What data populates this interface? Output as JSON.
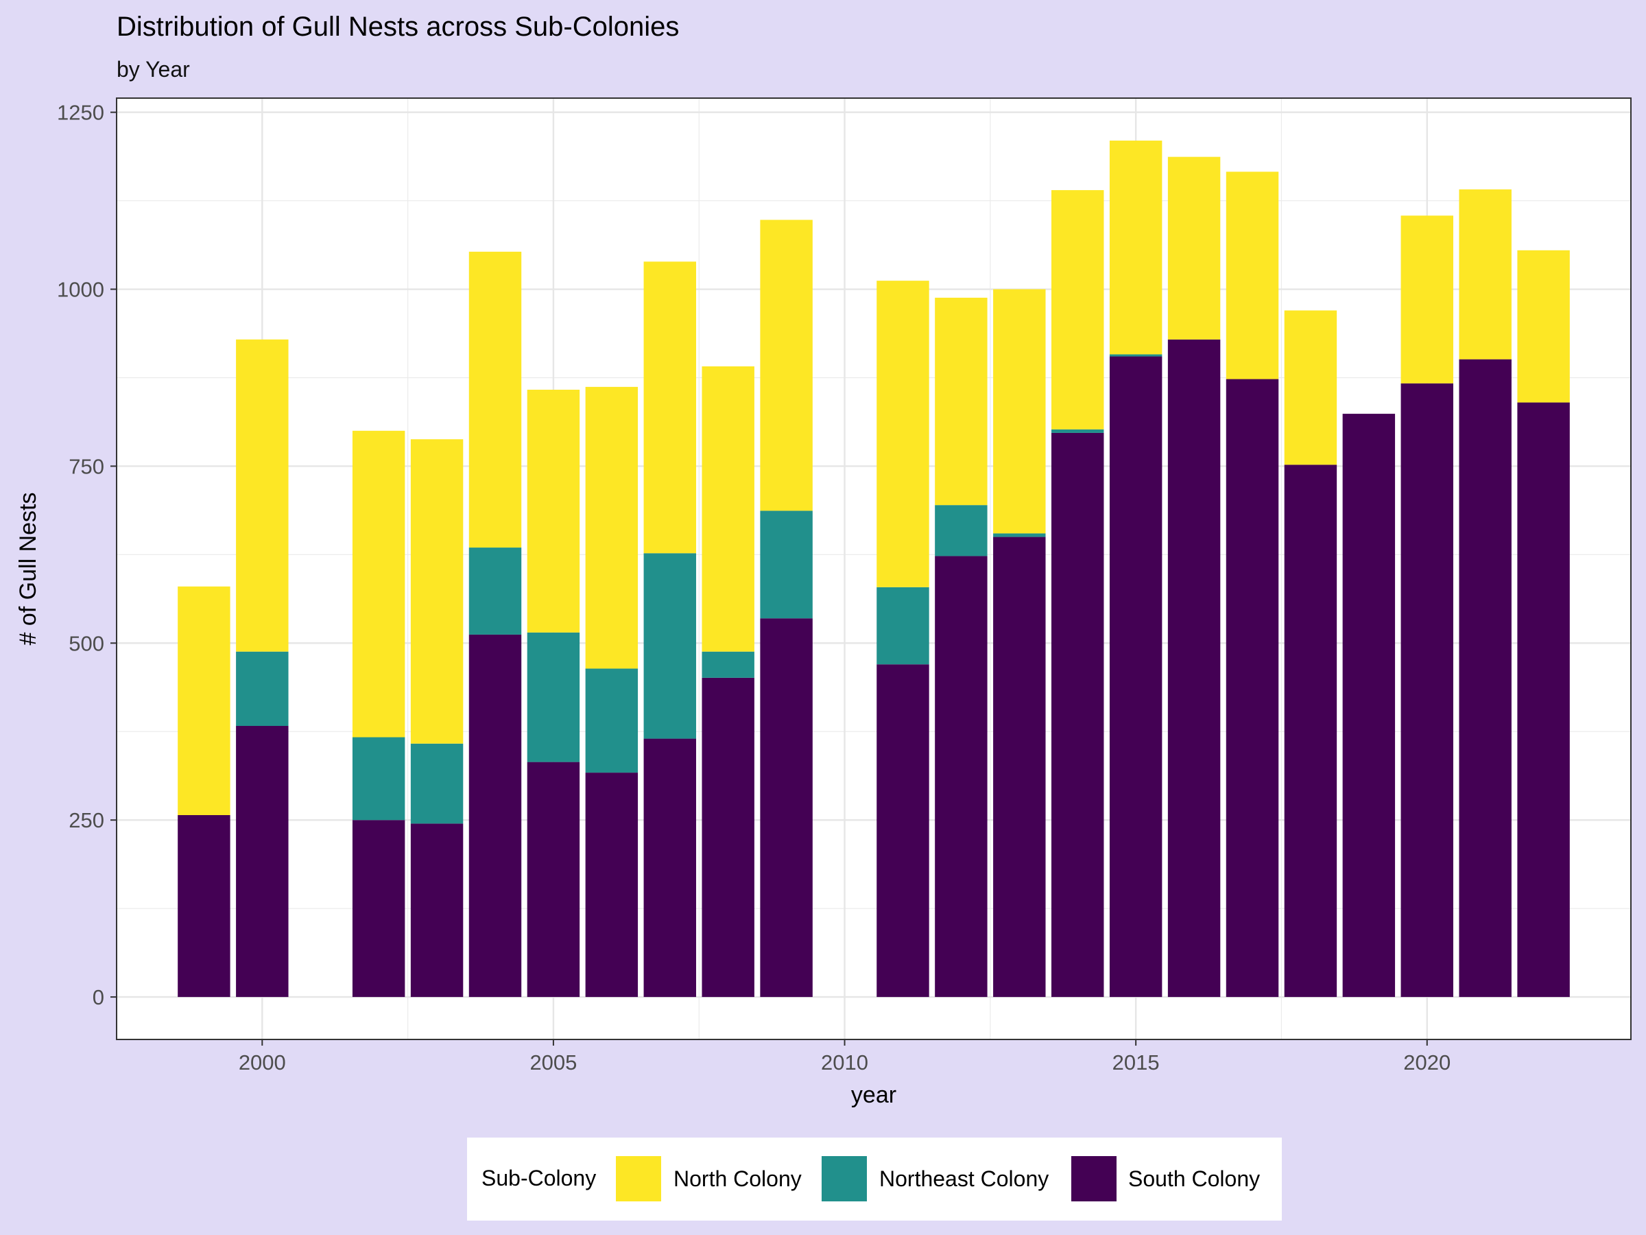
{
  "chart_data": {
    "type": "bar",
    "stacked": true,
    "title": "Distribution of Gull Nests across Sub-Colonies",
    "subtitle": "by Year",
    "xlabel": "year",
    "ylabel": "# of Gull Nests",
    "xlim": [
      1997.5,
      2023.5
    ],
    "ylim": [
      -60,
      1270
    ],
    "x_ticks": [
      2000,
      2005,
      2010,
      2015,
      2020
    ],
    "y_ticks": [
      0,
      250,
      500,
      750,
      1000,
      1250
    ],
    "grid": true,
    "legend": {
      "title": "Sub-Colony",
      "position": "bottom"
    },
    "x": [
      1999,
      2000,
      2002,
      2003,
      2004,
      2005,
      2006,
      2007,
      2008,
      2009,
      2011,
      2012,
      2013,
      2014,
      2015,
      2016,
      2017,
      2018,
      2019,
      2020,
      2021,
      2022
    ],
    "series": [
      {
        "name": "South Colony",
        "color": "#440154",
        "values": [
          257,
          383,
          250,
          245,
          512,
          332,
          317,
          365,
          451,
          535,
          470,
          623,
          650,
          797,
          905,
          929,
          873,
          752,
          824,
          867,
          901,
          840
        ]
      },
      {
        "name": "Northeast Colony",
        "color": "#21908c",
        "values": [
          0,
          105,
          117,
          113,
          123,
          183,
          147,
          262,
          37,
          152,
          109,
          72,
          5,
          5,
          3,
          0,
          0,
          0,
          0,
          0,
          0,
          0
        ]
      },
      {
        "name": "North Colony",
        "color": "#fde725",
        "values": [
          323,
          441,
          433,
          430,
          418,
          343,
          398,
          412,
          403,
          411,
          433,
          293,
          345,
          338,
          302,
          258,
          293,
          218,
          0,
          237,
          240,
          215
        ]
      }
    ],
    "legend_order": [
      "North Colony",
      "Northeast Colony",
      "South Colony"
    ]
  }
}
